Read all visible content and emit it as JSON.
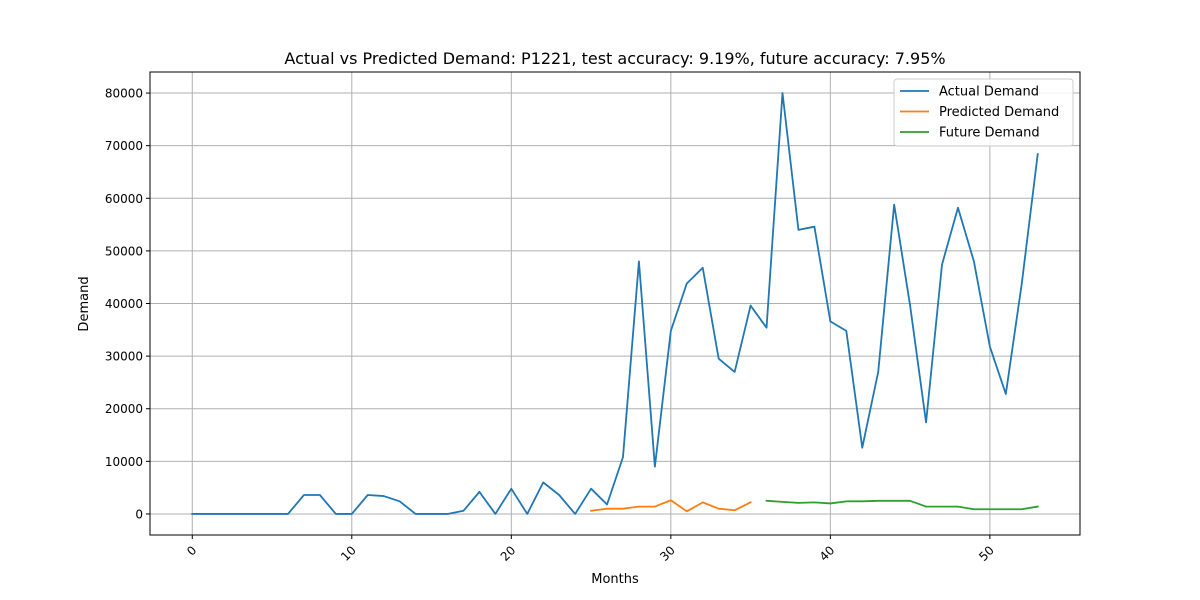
{
  "chart_data": {
    "type": "line",
    "title": "Actual vs Predicted Demand: P1221, test accuracy: 9.19%, future accuracy: 7.95%",
    "xlabel": "Months",
    "ylabel": "Demand",
    "xlim": [
      -2.65,
      55.65
    ],
    "ylim": [
      -4000,
      84000
    ],
    "xticks": [
      0,
      10,
      20,
      30,
      40,
      50
    ],
    "xtick_labels": [
      "0",
      "10",
      "20",
      "30",
      "40",
      "50"
    ],
    "yticks": [
      0,
      10000,
      20000,
      30000,
      40000,
      50000,
      60000,
      70000,
      80000
    ],
    "ytick_labels": [
      "0",
      "10000",
      "20000",
      "30000",
      "40000",
      "50000",
      "60000",
      "70000",
      "80000"
    ],
    "grid": true,
    "legend_position": "top-right",
    "series": [
      {
        "name": "Actual Demand",
        "color": "#1f77b4",
        "x": [
          0,
          1,
          2,
          3,
          4,
          5,
          6,
          7,
          8,
          9,
          10,
          11,
          12,
          13,
          14,
          15,
          16,
          17,
          18,
          19,
          20,
          21,
          22,
          23,
          24,
          25,
          26,
          27,
          28,
          29,
          30,
          31,
          32,
          33,
          34,
          35,
          36,
          37,
          38,
          39,
          40,
          41,
          42,
          43,
          44,
          45,
          46,
          47,
          48,
          49,
          50,
          51,
          52,
          53
        ],
        "values": [
          0,
          0,
          0,
          0,
          0,
          0,
          0,
          3600,
          3600,
          0,
          0,
          3600,
          3400,
          2400,
          0,
          0,
          0,
          600,
          4200,
          0,
          4800,
          0,
          6000,
          3600,
          0,
          4800,
          1800,
          10800,
          48000,
          9000,
          34800,
          43800,
          46800,
          29500,
          27000,
          39600,
          35400,
          80000,
          54000,
          54600,
          36600,
          34800,
          12600,
          27000,
          58800,
          39600,
          17400,
          47400,
          58200,
          48000,
          31800,
          22800,
          43800,
          68400
        ]
      },
      {
        "name": "Predicted Demand",
        "color": "#ff7f0e",
        "x": [
          25,
          26,
          27,
          28,
          29,
          30,
          31,
          32,
          33,
          34,
          35
        ],
        "values": [
          600,
          1000,
          1000,
          1400,
          1400,
          2600,
          500,
          2200,
          1000,
          700,
          2200
        ]
      },
      {
        "name": "Future Demand",
        "color": "#2ca02c",
        "x": [
          36,
          37,
          38,
          39,
          40,
          41,
          42,
          43,
          44,
          45,
          46,
          47,
          48,
          49,
          50,
          51,
          52,
          53
        ],
        "values": [
          2500,
          2300,
          2100,
          2200,
          2000,
          2400,
          2400,
          2500,
          2500,
          2500,
          1400,
          1400,
          1400,
          900,
          900,
          900,
          900,
          1400
        ]
      }
    ]
  }
}
